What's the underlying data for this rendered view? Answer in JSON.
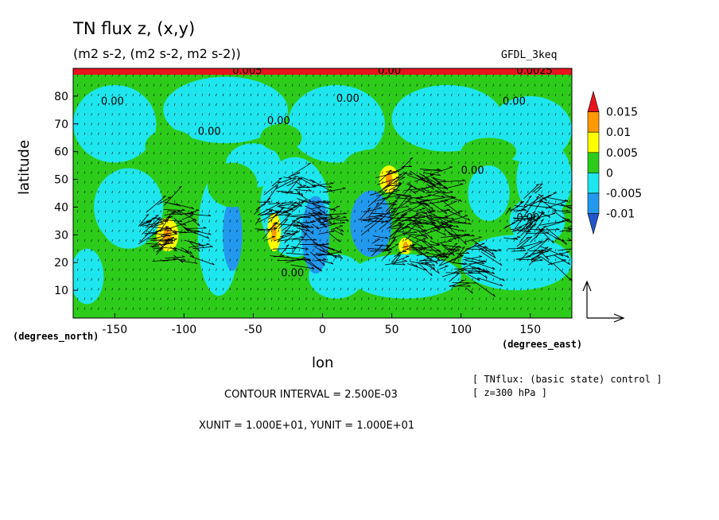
{
  "chart_data": {
    "type": "heatmap",
    "title": "TN flux z, (x,y)",
    "subtitle": "(m2 s-2, (m2 s-2, m2 s-2))",
    "model_label": "GFDL_3keq",
    "xlabel": "lon",
    "ylabel": "latitude",
    "x_unit_label": "(degrees_east)",
    "y_unit_label": "(degrees_north)",
    "xlim": [
      -180,
      180
    ],
    "ylim": [
      0,
      90
    ],
    "x_ticks": [
      -150,
      -100,
      -50,
      0,
      50,
      100,
      150
    ],
    "y_ticks": [
      10,
      20,
      30,
      40,
      50,
      60,
      70,
      80
    ],
    "contour_interval_text": "CONTOUR INTERVAL = 2.500E-03",
    "vector_units_text": "XUNIT = 1.000E+01, YUNIT = 1.000E+01",
    "notes": [
      "[ TNflux: (basic state) control ]",
      "[ z=300 hPa ]"
    ],
    "contour_labels": [
      {
        "text": "0.00",
        "lon": -160,
        "lat": 77
      },
      {
        "text": "0.00",
        "lon": -90,
        "lat": 66
      },
      {
        "text": "0.00",
        "lon": -40,
        "lat": 70
      },
      {
        "text": "0.00",
        "lon": 10,
        "lat": 78
      },
      {
        "text": "0.00",
        "lon": 40,
        "lat": 88
      },
      {
        "text": "0.005",
        "lon": -65,
        "lat": 88
      },
      {
        "text": "0.00",
        "lon": 100,
        "lat": 52
      },
      {
        "text": "0.00",
        "lon": 130,
        "lat": 77
      },
      {
        "text": "0.0025",
        "lon": 140,
        "lat": 88
      },
      {
        "text": "0.00",
        "lon": -30,
        "lat": 15
      },
      {
        "text": "0.00",
        "lon": 140,
        "lat": 35
      }
    ],
    "colorbar": {
      "levels": [
        "0.015",
        "0.01",
        "0.005",
        "0",
        "-0.005",
        "-0.01"
      ],
      "colors": [
        "#e8141c",
        "#ff9900",
        "#ffff00",
        "#2ecc1a",
        "#1ee6ee",
        "#2299ee",
        "#2255cc"
      ]
    },
    "anomalies": [
      {
        "lon": -112,
        "lat": 30,
        "rx": 8,
        "ry": 6,
        "value": 0.0075
      },
      {
        "lon": -35,
        "lat": 31,
        "rx": 5,
        "ry": 7,
        "value": 0.0075
      },
      {
        "lon": 48,
        "lat": 50,
        "rx": 7,
        "ry": 5,
        "value": 0.0075
      },
      {
        "lon": 60,
        "lat": 26,
        "rx": 5,
        "ry": 3,
        "value": 0.0075
      },
      {
        "lon": -65,
        "lat": 30,
        "rx": 7,
        "ry": 13,
        "value": -0.0075
      },
      {
        "lon": -5,
        "lat": 30,
        "rx": 10,
        "ry": 14,
        "value": -0.0075
      },
      {
        "lon": 35,
        "lat": 34,
        "rx": 15,
        "ry": 12,
        "value": -0.0075
      },
      {
        "lon": -140,
        "lat": 35,
        "rx": 20,
        "ry": 10,
        "value": -0.0025
      },
      {
        "lon": 155,
        "lat": 35,
        "rx": 20,
        "ry": 9,
        "value": -0.0025
      },
      {
        "lon": -110,
        "lat": 55,
        "rx": 12,
        "ry": 6,
        "value": 0.0
      },
      {
        "lon": -65,
        "lat": 48,
        "rx": 18,
        "ry": 8,
        "value": 0.0
      }
    ],
    "vector_clusters": [
      {
        "lon": -112,
        "lat": 30,
        "r": 22,
        "n": 80
      },
      {
        "lon": -20,
        "lat": 35,
        "r": 30,
        "n": 140
      },
      {
        "lon": 60,
        "lat": 36,
        "r": 35,
        "n": 220
      },
      {
        "lon": 155,
        "lat": 32,
        "r": 25,
        "n": 100
      },
      {
        "lon": 100,
        "lat": 20,
        "r": 18,
        "n": 50
      }
    ]
  }
}
